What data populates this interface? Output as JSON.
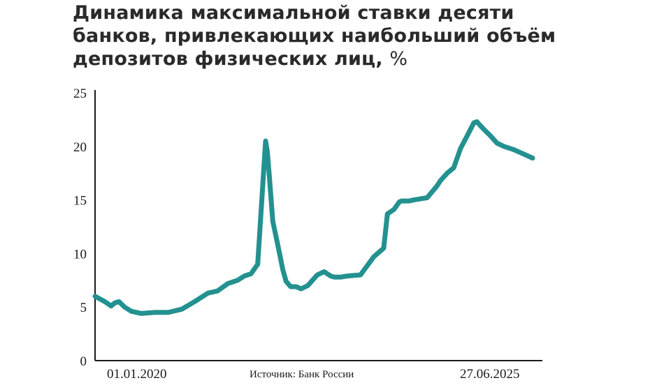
{
  "chart_data": {
    "type": "line",
    "title": "Динамика максимальной ставки десяти банков, привлекающих наибольший объём депозитов физических лиц,",
    "unit": "%",
    "source": "Источник: Банк России",
    "x_start_label": "01.01.2020",
    "x_end_label": "27.06.2025",
    "ylim": [
      0,
      25
    ],
    "yticks": [
      "0",
      "5",
      "10",
      "15",
      "20",
      "25"
    ],
    "line_color": "#239190",
    "grid": false,
    "legend": "none",
    "series": [
      {
        "x": [
          "2020-01-01",
          "2020-02-15",
          "2020-03-15",
          "2020-04-01",
          "2020-04-20",
          "2020-05-15",
          "2020-06-15",
          "2020-08-01",
          "2020-10-01",
          "2020-12-01",
          "2021-02-01",
          "2021-04-01",
          "2021-06-01",
          "2021-07-15",
          "2021-09-01",
          "2021-10-15",
          "2021-11-15",
          "2021-12-15",
          "2022-01-15",
          "2022-02-20",
          "2022-02-28",
          "2022-03-10",
          "2022-03-25",
          "2022-04-15",
          "2022-05-10",
          "2022-05-25",
          "2022-06-15",
          "2022-07-10",
          "2022-08-01",
          "2022-09-01",
          "2022-10-15",
          "2022-11-15",
          "2022-12-15",
          "2023-01-01",
          "2023-02-01",
          "2023-03-01",
          "2023-05-01",
          "2023-07-01",
          "2023-08-15",
          "2023-09-01",
          "2023-10-01",
          "2023-10-25",
          "2023-11-05",
          "2023-12-10",
          "2024-01-01",
          "2024-03-01",
          "2024-04-15",
          "2024-05-01",
          "2024-06-01",
          "2024-07-01",
          "2024-08-01",
          "2024-09-01",
          "2024-10-01",
          "2024-10-15",
          "2024-11-01",
          "2024-11-20",
          "2024-12-15",
          "2025-01-15",
          "2025-02-15",
          "2025-04-01",
          "2025-05-15",
          "2025-06-27"
        ],
        "values": [
          6.0,
          5.5,
          5.1,
          5.4,
          5.5,
          5.0,
          4.6,
          4.4,
          4.5,
          4.5,
          4.8,
          5.5,
          6.3,
          6.5,
          7.2,
          7.5,
          7.9,
          8.1,
          9.0,
          20.5,
          19.5,
          17.0,
          13.0,
          11.0,
          8.5,
          7.4,
          6.9,
          6.9,
          6.7,
          7.0,
          8.0,
          8.3,
          7.9,
          7.8,
          7.8,
          7.9,
          8.0,
          9.7,
          10.5,
          13.7,
          14.1,
          14.8,
          14.9,
          14.9,
          15.0,
          15.2,
          16.3,
          16.8,
          17.5,
          18.0,
          19.8,
          21.0,
          22.2,
          22.3,
          21.9,
          21.5,
          21.0,
          20.3,
          20.0,
          19.7,
          19.3,
          18.9
        ]
      }
    ]
  }
}
